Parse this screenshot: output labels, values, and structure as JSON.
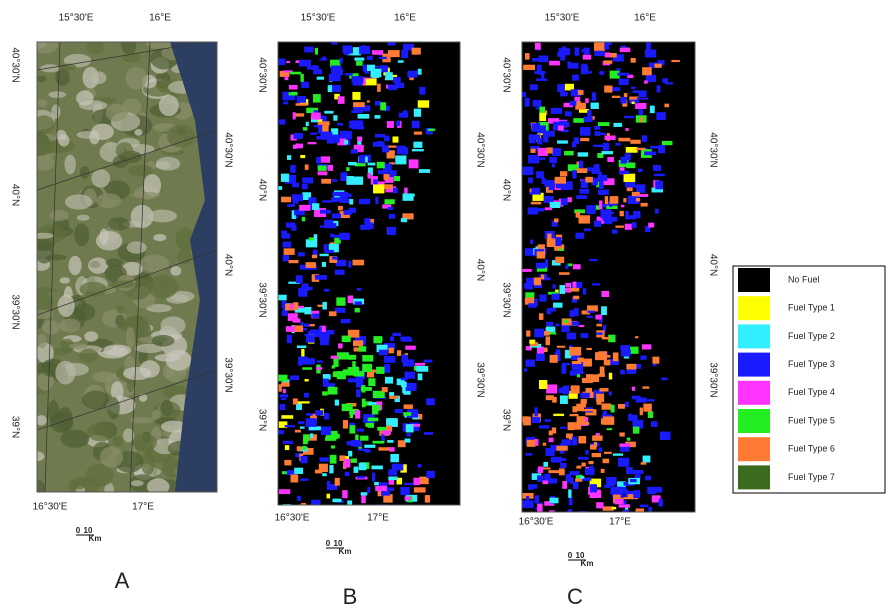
{
  "panels": [
    {
      "label": "A",
      "top_labels": [
        "15°30'E",
        "16°E"
      ],
      "left_labels": [
        "40°30'N",
        "40°N",
        "39°30'N",
        "39°N"
      ],
      "right_labels": [
        "40°30'N",
        "40°N",
        "39°30'N"
      ],
      "bottom_labels": [
        "16°30'E",
        "17°E"
      ],
      "scale": {
        "start": "0",
        "end": "10",
        "unit": "Km"
      }
    },
    {
      "label": "B",
      "top_labels": [
        "15°30'E",
        "16°E"
      ],
      "left_labels": [
        "40°30'N",
        "40°N",
        "39°30'N",
        "39°N"
      ],
      "right_labels": [
        "40°30'N",
        "40°N",
        "39°30'N"
      ],
      "bottom_labels": [
        "16°30'E",
        "17°E"
      ],
      "scale": {
        "start": "0",
        "end": "10",
        "unit": "Km"
      }
    },
    {
      "label": "C",
      "top_labels": [
        "15°30'E",
        "16°E"
      ],
      "left_labels": [
        "40°30'N",
        "40°N",
        "39°30'N",
        "39°N"
      ],
      "right_labels": [
        "40°30'N",
        "40°N",
        "39°30'N"
      ],
      "bottom_labels": [
        "16°30'E",
        "17°E"
      ],
      "scale": {
        "start": "0",
        "end": "10",
        "unit": "Km"
      }
    }
  ],
  "legend": {
    "items": [
      {
        "label": "No Fuel",
        "color": "#000000"
      },
      {
        "label": "Fuel Type 1",
        "color": "#ffff00"
      },
      {
        "label": "Fuel Type 2",
        "color": "#33eeff"
      },
      {
        "label": "Fuel Type 3",
        "color": "#1a1aff"
      },
      {
        "label": "Fuel Type 4",
        "color": "#ff33ff"
      },
      {
        "label": "Fuel Type 5",
        "color": "#22ee22"
      },
      {
        "label": "Fuel Type 6",
        "color": "#ff7a33"
      },
      {
        "label": "Fuel Type 7",
        "color": "#3a6b1f"
      }
    ]
  }
}
